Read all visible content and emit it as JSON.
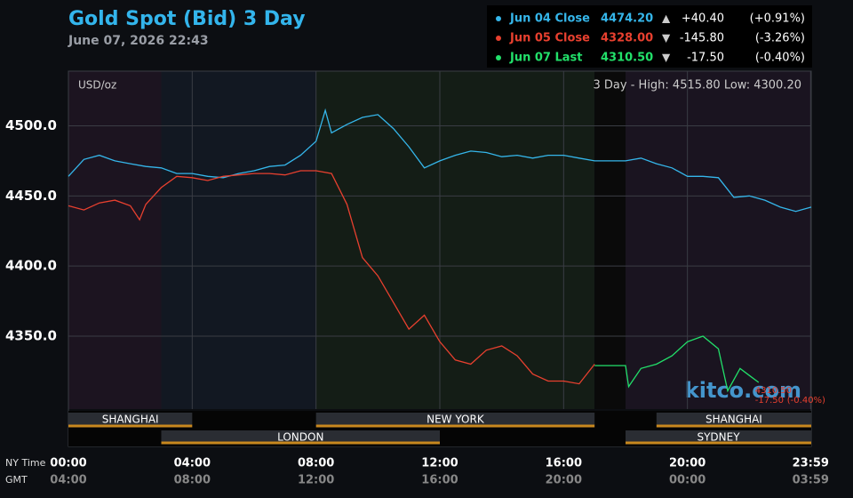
{
  "chart_data": {
    "type": "line",
    "title": "Gold Spot (Bid) 3 Day",
    "subtitle": "June 07, 2026 22:43",
    "unit_label": "USD/oz",
    "range_label": "3 Day - High: 4515.80  Low: 4300.20",
    "watermark": "kitco.com",
    "legend_rows": [
      {
        "name": "Jun 04 Close",
        "price": "4474.20",
        "arrow": "▲",
        "change": "+40.40",
        "pct": "(+0.91%)"
      },
      {
        "name": "Jun 05 Close",
        "price": "4328.00",
        "arrow": "▼",
        "change": "-145.80",
        "pct": "(-3.26%)"
      },
      {
        "name": "Jun 07 Last",
        "price": "4310.50",
        "arrow": "▼",
        "change": "-17.50",
        "pct": "(-0.40%)"
      }
    ],
    "sessions": [
      "SHANGHAI",
      "NEW YORK",
      "SHANGHAI",
      "LONDON",
      "SYDNEY"
    ],
    "x_axis_label": "NY Time",
    "x2_axis_label": "GMT",
    "xlim": [
      0,
      24
    ],
    "xticks": [
      {
        "value": 0,
        "label": "00:00"
      },
      {
        "value": 4,
        "label": "04:00"
      },
      {
        "value": 8,
        "label": "08:00"
      },
      {
        "value": 12,
        "label": "12:00"
      },
      {
        "value": 16,
        "label": "16:00"
      },
      {
        "value": 20,
        "label": "20:00"
      },
      {
        "value": 23.98,
        "label": "23:59"
      }
    ],
    "x2ticks": [
      "04:00",
      "08:00",
      "12:00",
      "16:00",
      "20:00",
      "00:00",
      "03:59"
    ],
    "ylim": [
      4298,
      4539
    ],
    "yticks": [
      {
        "value": 4350,
        "label": "4350.0"
      },
      {
        "value": 4400,
        "label": "4400.0"
      },
      {
        "value": 4450,
        "label": "4450.0"
      },
      {
        "value": 4500,
        "label": "4500.0"
      }
    ],
    "grid": true,
    "series": [
      {
        "name": "Jun 04 Close",
        "color": "#35b6ea",
        "x": [
          0,
          0.5,
          1,
          1.5,
          2,
          2.5,
          3,
          3.5,
          4,
          4.5,
          5,
          5.5,
          6,
          6.5,
          7,
          7.5,
          8,
          8.3,
          8.5,
          9,
          9.5,
          10,
          10.5,
          11,
          11.5,
          12,
          12.5,
          13,
          13.5,
          14,
          14.5,
          15,
          15.5,
          16,
          16.5,
          17,
          18,
          18.5,
          19,
          19.5,
          20,
          20.5,
          21,
          21.5,
          22,
          22.5,
          23,
          23.5,
          24
        ],
        "values": [
          4464,
          4476,
          4479,
          4475,
          4473,
          4471,
          4470,
          4466,
          4466,
          4464,
          4463,
          4466,
          4468,
          4471,
          4472,
          4479,
          4489,
          4511,
          4495,
          4501,
          4506,
          4508,
          4498,
          4485,
          4470,
          4475,
          4479,
          4482,
          4481,
          4478,
          4479,
          4477,
          4479,
          4479,
          4477,
          4475,
          4475,
          4477,
          4473,
          4470,
          4464,
          4464,
          4463,
          4449,
          4450,
          4447,
          4442,
          4439,
          4442
        ]
      },
      {
        "name": "Jun 05 Close",
        "color": "#e8402f",
        "x": [
          0,
          0.5,
          1,
          1.5,
          2,
          2.3,
          2.5,
          3,
          3.5,
          4,
          4.5,
          5,
          5.5,
          6,
          6.5,
          7,
          7.5,
          8,
          8.5,
          9,
          9.5,
          10,
          10.5,
          11,
          11.5,
          12,
          12.5,
          13,
          13.5,
          14,
          14.5,
          15,
          15.5,
          16,
          16.5,
          17
        ],
        "values": [
          4443,
          4440,
          4445,
          4447,
          4443,
          4433,
          4444,
          4456,
          4464,
          4463,
          4461,
          4464,
          4465,
          4466,
          4466,
          4465,
          4468,
          4468,
          4466,
          4444,
          4406,
          4393,
          4374,
          4355,
          4365,
          4346,
          4333,
          4330,
          4340,
          4343,
          4336,
          4323,
          4318,
          4318,
          4316,
          4330
        ]
      },
      {
        "name": "Jun 07 Last",
        "color": "#22e06a",
        "x": [
          17,
          18,
          18.1,
          18.5,
          19,
          19.5,
          20,
          20.5,
          21,
          21.3,
          21.7,
          22,
          22.3
        ],
        "values": [
          4329,
          4329,
          4314,
          4327,
          4330,
          4336,
          4346,
          4350,
          4341,
          4311,
          4327,
          4322,
          4317
        ]
      }
    ]
  }
}
